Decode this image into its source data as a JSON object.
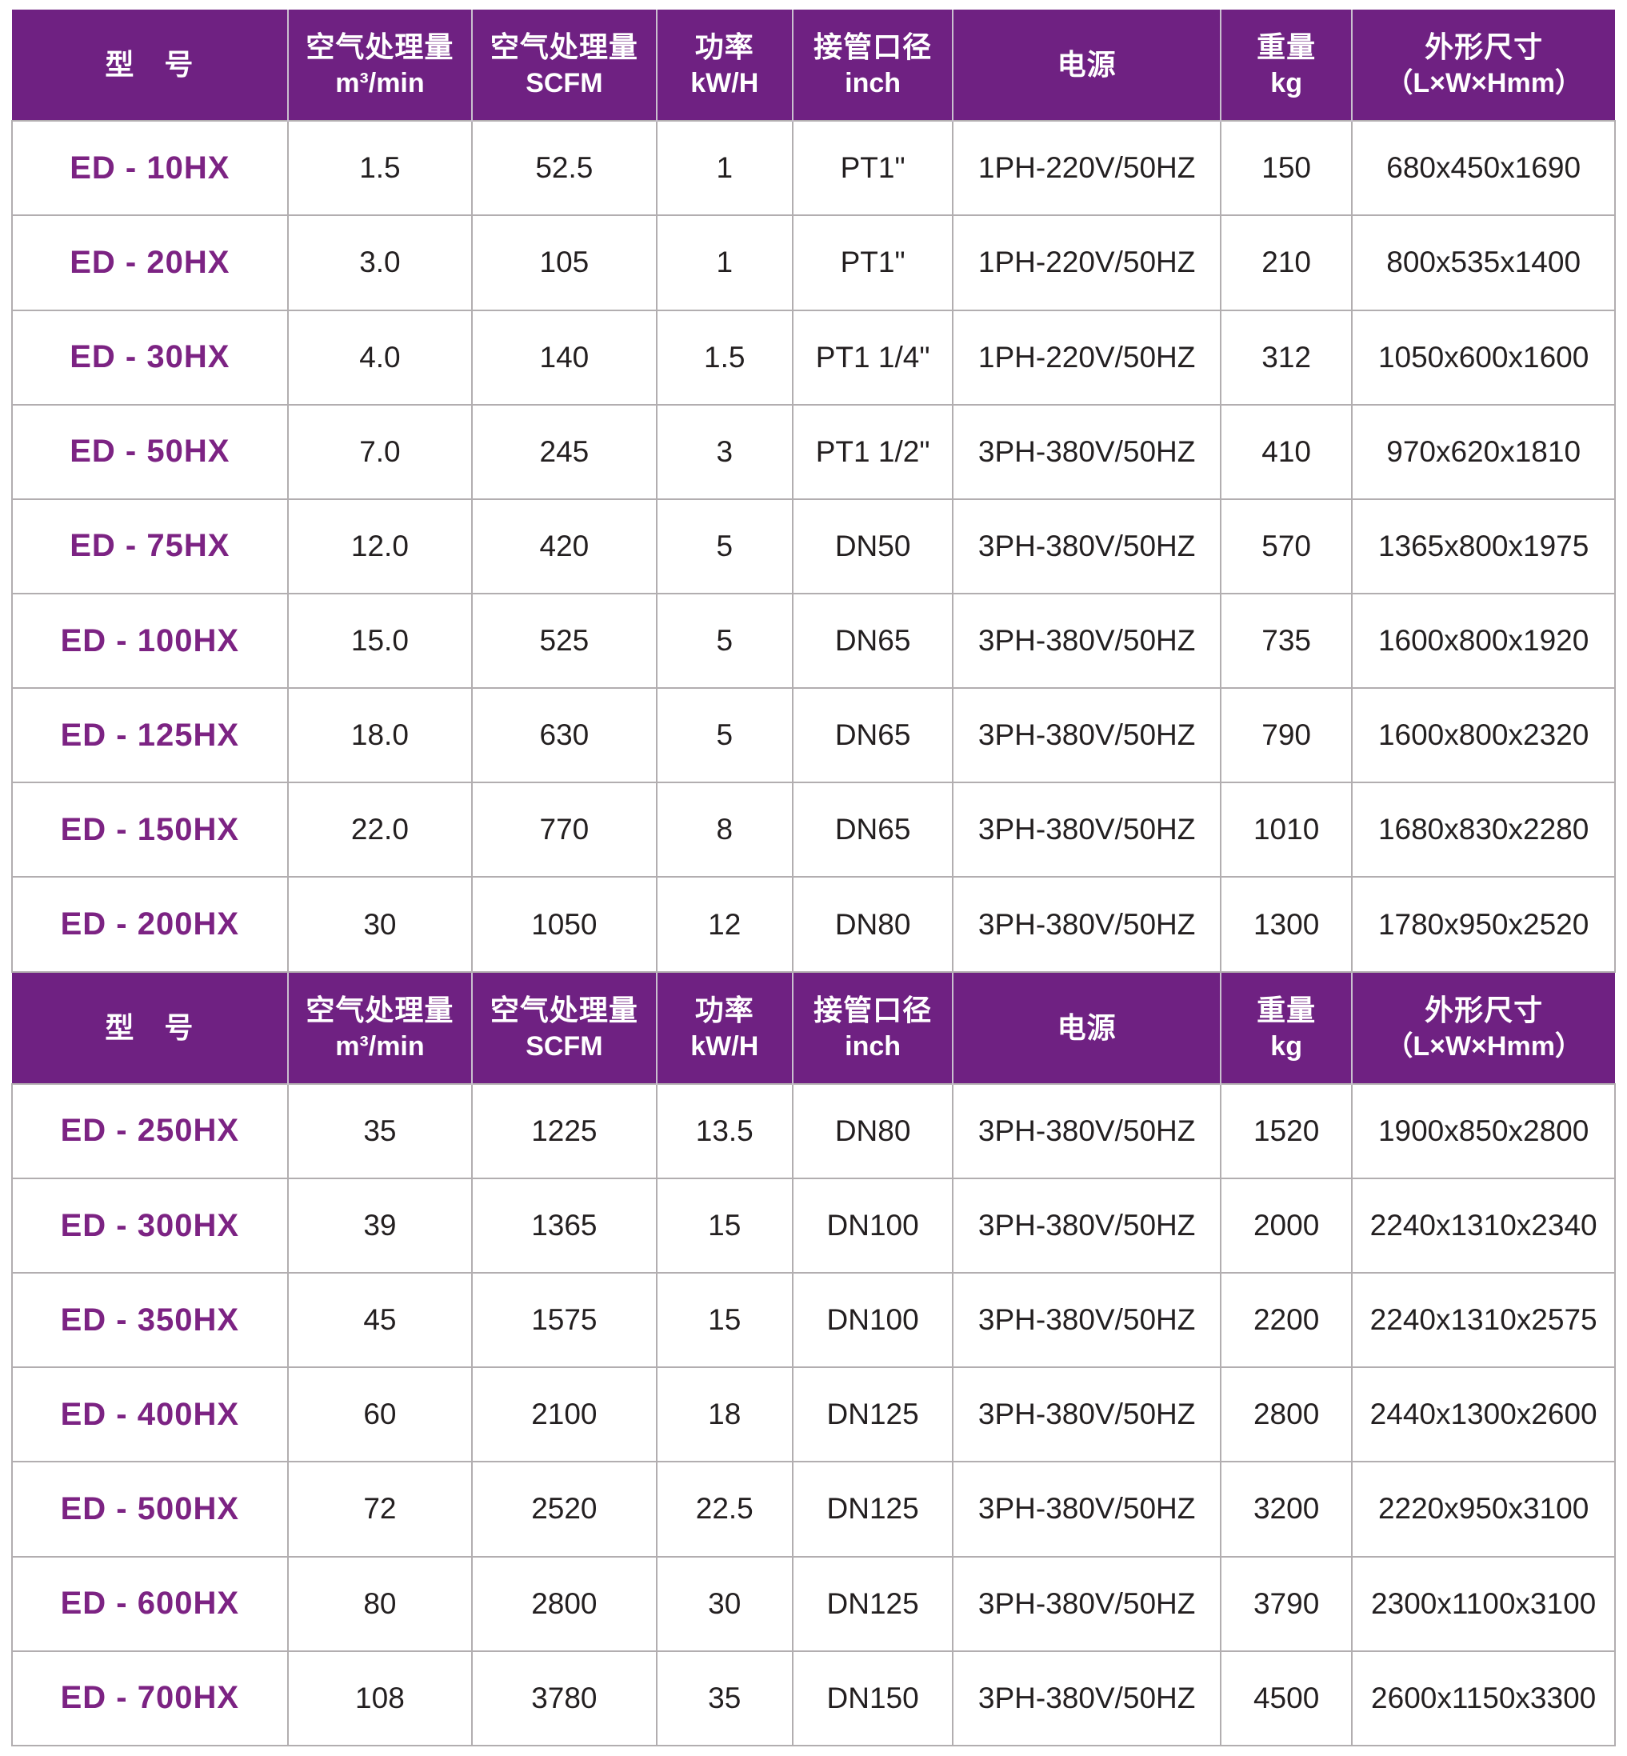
{
  "colors": {
    "header_background": "#6f2182",
    "header_text": "#ffffff",
    "model_text": "#7c2383",
    "body_text": "#231f20",
    "grid_line": "#b2aeb0"
  },
  "table": {
    "columns": [
      {
        "title": "型　号",
        "sub": ""
      },
      {
        "title": "空气处理量",
        "sub": "m³/min"
      },
      {
        "title": "空气处理量",
        "sub": "SCFM"
      },
      {
        "title": "功率",
        "sub": "kW/H"
      },
      {
        "title": "接管口径",
        "sub": "inch"
      },
      {
        "title": "电源",
        "sub": ""
      },
      {
        "title": "重量",
        "sub": "kg"
      },
      {
        "title": "外形尺寸",
        "sub": "（L×W×Hmm）"
      }
    ],
    "sections": [
      {
        "rows": [
          [
            "ED - 10HX",
            "1.5",
            "52.5",
            "1",
            "PT1\"",
            "1PH-220V/50HZ",
            "150",
            "680x450x1690"
          ],
          [
            "ED - 20HX",
            "3.0",
            "105",
            "1",
            "PT1\"",
            "1PH-220V/50HZ",
            "210",
            "800x535x1400"
          ],
          [
            "ED - 30HX",
            "4.0",
            "140",
            "1.5",
            "PT1 1/4\"",
            "1PH-220V/50HZ",
            "312",
            "1050x600x1600"
          ],
          [
            "ED - 50HX",
            "7.0",
            "245",
            "3",
            "PT1 1/2\"",
            "3PH-380V/50HZ",
            "410",
            "970x620x1810"
          ],
          [
            "ED - 75HX",
            "12.0",
            "420",
            "5",
            "DN50",
            "3PH-380V/50HZ",
            "570",
            "1365x800x1975"
          ],
          [
            "ED - 100HX",
            "15.0",
            "525",
            "5",
            "DN65",
            "3PH-380V/50HZ",
            "735",
            "1600x800x1920"
          ],
          [
            "ED - 125HX",
            "18.0",
            "630",
            "5",
            "DN65",
            "3PH-380V/50HZ",
            "790",
            "1600x800x2320"
          ],
          [
            "ED - 150HX",
            "22.0",
            "770",
            "8",
            "DN65",
            "3PH-380V/50HZ",
            "1010",
            "1680x830x2280"
          ],
          [
            "ED - 200HX",
            "30",
            "1050",
            "12",
            "DN80",
            "3PH-380V/50HZ",
            "1300",
            "1780x950x2520"
          ]
        ]
      },
      {
        "rows": [
          [
            "ED - 250HX",
            "35",
            "1225",
            "13.5",
            "DN80",
            "3PH-380V/50HZ",
            "1520",
            "1900x850x2800"
          ],
          [
            "ED - 300HX",
            "39",
            "1365",
            "15",
            "DN100",
            "3PH-380V/50HZ",
            "2000",
            "2240x1310x2340"
          ],
          [
            "ED - 350HX",
            "45",
            "1575",
            "15",
            "DN100",
            "3PH-380V/50HZ",
            "2200",
            "2240x1310x2575"
          ],
          [
            "ED - 400HX",
            "60",
            "2100",
            "18",
            "DN125",
            "3PH-380V/50HZ",
            "2800",
            "2440x1300x2600"
          ],
          [
            "ED - 500HX",
            "72",
            "2520",
            "22.5",
            "DN125",
            "3PH-380V/50HZ",
            "3200",
            "2220x950x3100"
          ],
          [
            "ED - 600HX",
            "80",
            "2800",
            "30",
            "DN125",
            "3PH-380V/50HZ",
            "3790",
            "2300x1100x3100"
          ],
          [
            "ED - 700HX",
            "108",
            "3780",
            "35",
            "DN150",
            "3PH-380V/50HZ",
            "4500",
            "2600x1150x3300"
          ]
        ]
      }
    ]
  }
}
